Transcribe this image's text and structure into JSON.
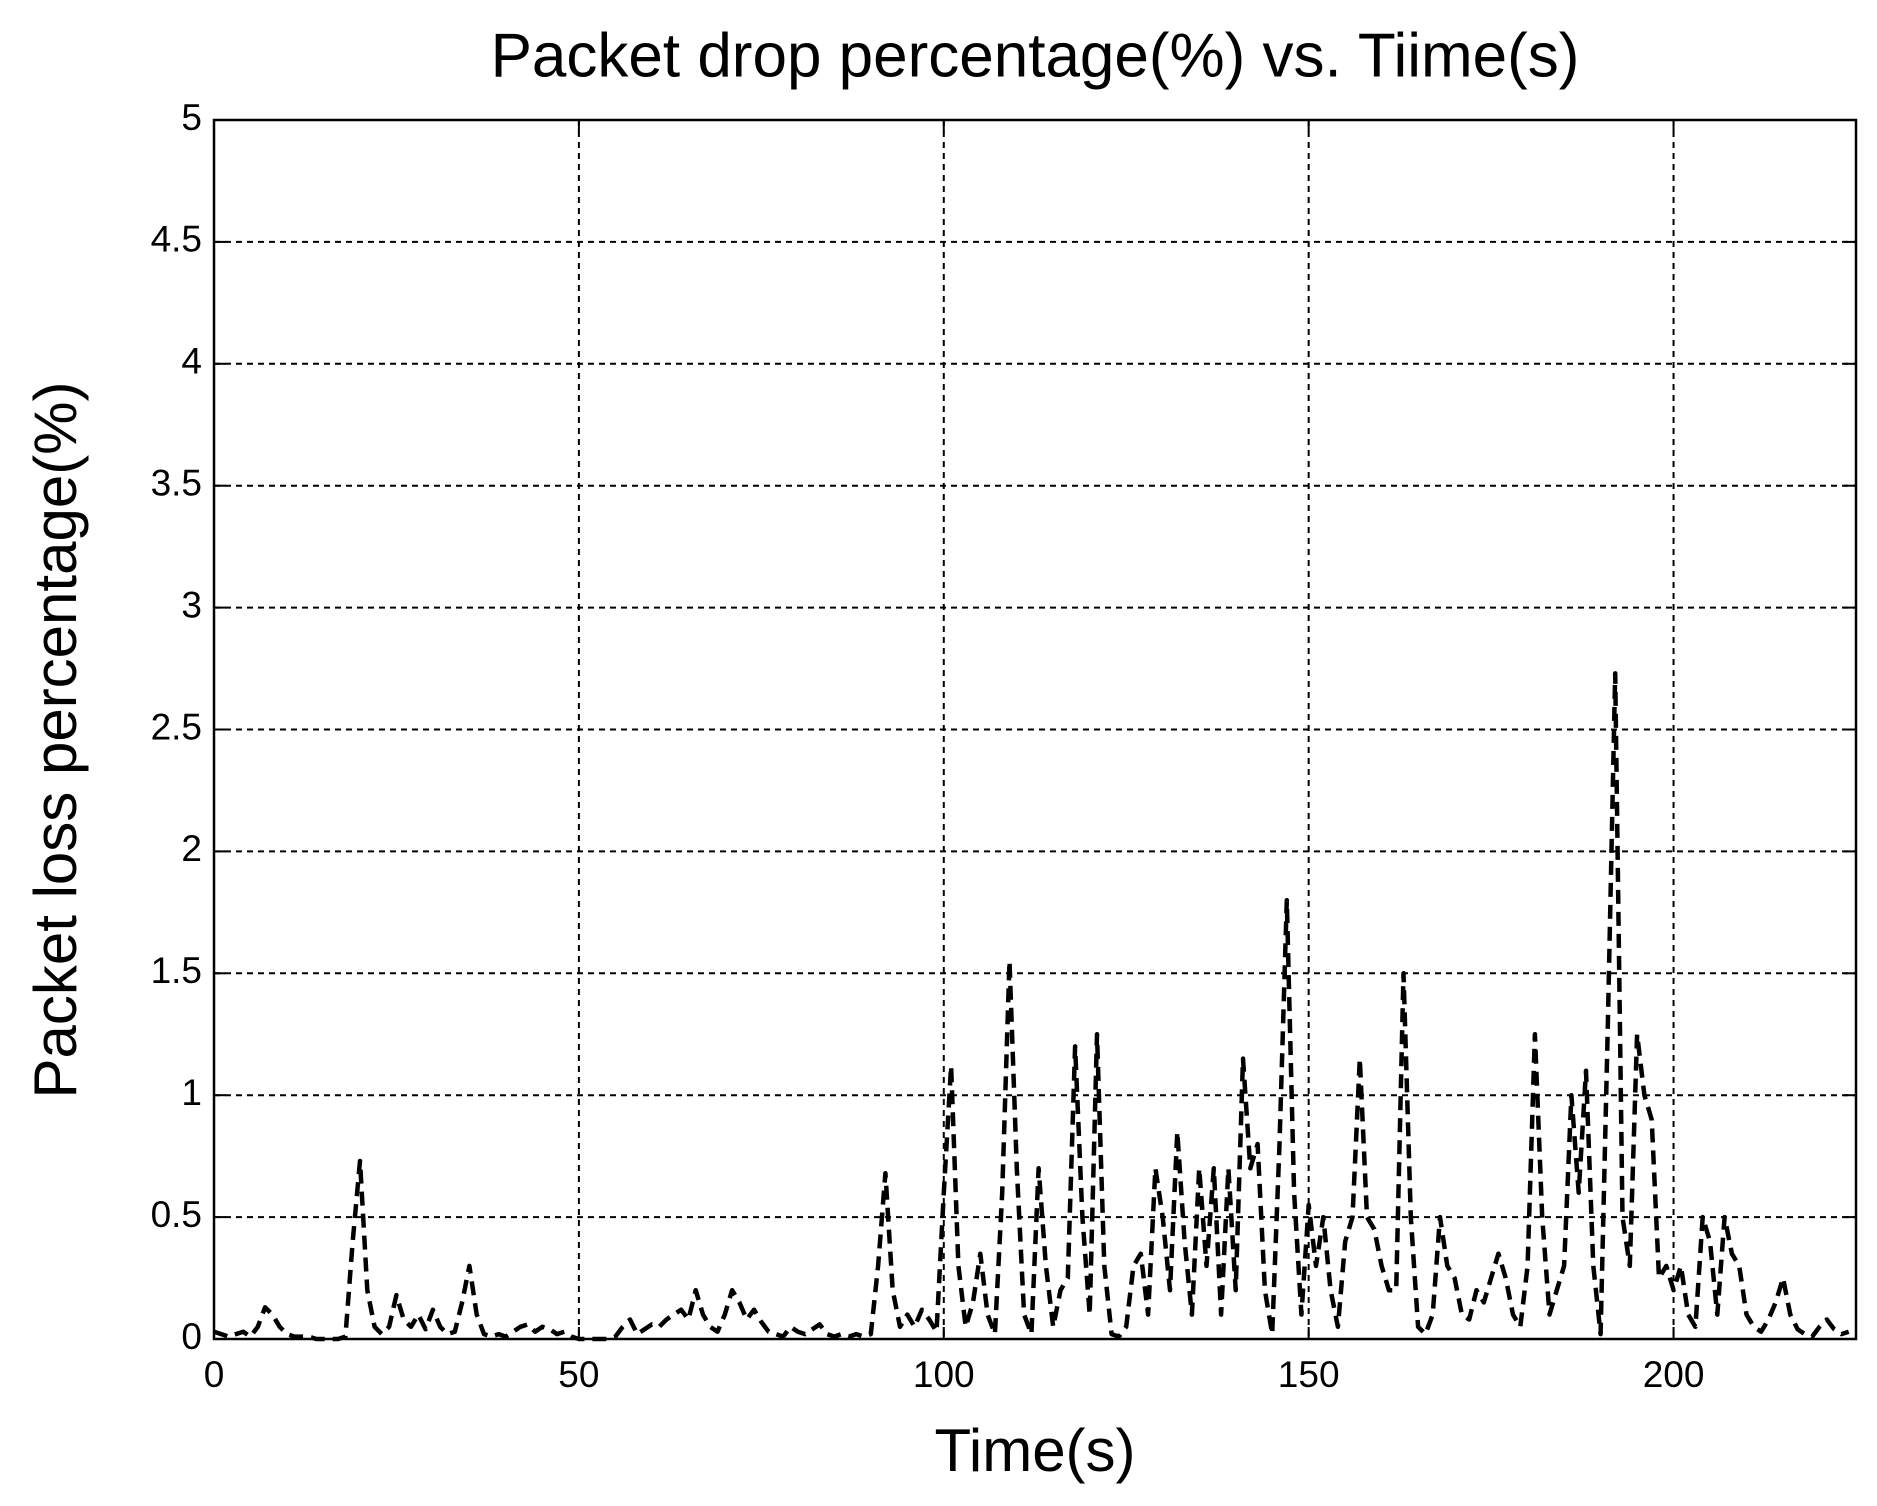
{
  "chart_data": {
    "type": "line",
    "title": "Packet drop percentage(%) vs. Tiime(s)",
    "xlabel": "Time(s)",
    "ylabel": "Packet loss percentage(%)",
    "xlim": [
      0,
      225
    ],
    "ylim": [
      0,
      5
    ],
    "xticks": [
      0,
      50,
      100,
      150,
      200
    ],
    "yticks": [
      0,
      0.5,
      1,
      1.5,
      2,
      2.5,
      3,
      3.5,
      4,
      4.5,
      5
    ],
    "grid": true,
    "series": [
      {
        "color": "#000000",
        "x": [
          0,
          1,
          2,
          3,
          4,
          5,
          6,
          7,
          8,
          9,
          10,
          11,
          12,
          13,
          14,
          15,
          16,
          17,
          18,
          19,
          20,
          21,
          22,
          23,
          24,
          25,
          26,
          27,
          28,
          29,
          30,
          31,
          32,
          33,
          34,
          35,
          36,
          37,
          38,
          39,
          40,
          41,
          42,
          43,
          44,
          45,
          46,
          47,
          48,
          49,
          50,
          51,
          52,
          53,
          54,
          55,
          56,
          57,
          58,
          59,
          60,
          61,
          62,
          63,
          64,
          65,
          66,
          67,
          68,
          69,
          70,
          71,
          72,
          73,
          74,
          75,
          76,
          77,
          78,
          79,
          80,
          81,
          82,
          83,
          84,
          85,
          86,
          87,
          88,
          89,
          90,
          91,
          92,
          93,
          94,
          95,
          96,
          97,
          98,
          99,
          100,
          101,
          102,
          103,
          104,
          105,
          106,
          107,
          108,
          109,
          110,
          111,
          112,
          113,
          114,
          115,
          116,
          117,
          118,
          119,
          120,
          121,
          122,
          123,
          124,
          125,
          126,
          127,
          128,
          129,
          130,
          131,
          132,
          133,
          134,
          135,
          136,
          137,
          138,
          139,
          140,
          141,
          142,
          143,
          144,
          145,
          146,
          147,
          148,
          149,
          150,
          151,
          152,
          153,
          154,
          155,
          156,
          157,
          158,
          159,
          160,
          161,
          162,
          163,
          164,
          165,
          166,
          167,
          168,
          169,
          170,
          171,
          172,
          173,
          174,
          175,
          176,
          177,
          178,
          179,
          180,
          181,
          182,
          183,
          184,
          185,
          186,
          187,
          188,
          189,
          190,
          191,
          192,
          193,
          194,
          195,
          196,
          197,
          198,
          199,
          200,
          201,
          202,
          203,
          204,
          205,
          206,
          207,
          208,
          209,
          210,
          211,
          212,
          213,
          214,
          215,
          216,
          217,
          218,
          219,
          220,
          221,
          222,
          223,
          224
        ],
        "values": [
          0.03,
          0.02,
          0.01,
          0.02,
          0.03,
          0.01,
          0.05,
          0.13,
          0.1,
          0.05,
          0.02,
          0.01,
          0.01,
          0.01,
          0,
          0,
          0,
          0,
          0.01,
          0.4,
          0.73,
          0.2,
          0.05,
          0.02,
          0.05,
          0.18,
          0.08,
          0.05,
          0.1,
          0.04,
          0.12,
          0.05,
          0.02,
          0.03,
          0.15,
          0.3,
          0.1,
          0.02,
          0.01,
          0.02,
          0.01,
          0.03,
          0.05,
          0.06,
          0.03,
          0.05,
          0.04,
          0.02,
          0.03,
          0.01,
          0,
          0,
          0,
          0,
          0,
          0.01,
          0.05,
          0.08,
          0.02,
          0.04,
          0.06,
          0.05,
          0.08,
          0.1,
          0.12,
          0.08,
          0.2,
          0.1,
          0.05,
          0.03,
          0.1,
          0.2,
          0.15,
          0.08,
          0.12,
          0.07,
          0.03,
          0.02,
          0.01,
          0.05,
          0.03,
          0.02,
          0.04,
          0.06,
          0.02,
          0.01,
          0.02,
          0.01,
          0.02,
          0.01,
          0.02,
          0.3,
          0.68,
          0.2,
          0.05,
          0.1,
          0.05,
          0.12,
          0.08,
          0.03,
          0.6,
          1.12,
          0.3,
          0.05,
          0.15,
          0.35,
          0.1,
          0.02,
          0.6,
          1.55,
          0.7,
          0.1,
          0.02,
          0.7,
          0.3,
          0.05,
          0.2,
          0.25,
          1.2,
          0.5,
          0.1,
          1.25,
          0.3,
          0.02,
          0.01,
          0.05,
          0.3,
          0.35,
          0.1,
          0.7,
          0.5,
          0.2,
          0.85,
          0.4,
          0.1,
          0.7,
          0.3,
          0.7,
          0.1,
          0.7,
          0.2,
          1.15,
          0.7,
          0.8,
          0.2,
          0.02,
          0.8,
          1.8,
          0.6,
          0.1,
          0.55,
          0.3,
          0.5,
          0.2,
          0.05,
          0.4,
          0.5,
          1.15,
          0.5,
          0.45,
          0.3,
          0.2,
          0.2,
          1.5,
          0.5,
          0.05,
          0.02,
          0.1,
          0.5,
          0.3,
          0.25,
          0.1,
          0.08,
          0.2,
          0.15,
          0.25,
          0.35,
          0.25,
          0.1,
          0.05,
          0.3,
          1.25,
          0.5,
          0.1,
          0.2,
          0.3,
          1.0,
          0.6,
          1.1,
          0.3,
          0.02,
          1.3,
          2.73,
          0.5,
          0.3,
          1.25,
          1.0,
          0.9,
          0.25,
          0.3,
          0.2,
          0.3,
          0.1,
          0.05,
          0.5,
          0.4,
          0.1,
          0.5,
          0.35,
          0.3,
          0.1,
          0.05,
          0.03,
          0.08,
          0.15,
          0.25,
          0.1,
          0.04,
          0.02,
          0.01,
          0.05,
          0.08,
          0.04,
          0.02,
          0.03
        ]
      }
    ]
  }
}
